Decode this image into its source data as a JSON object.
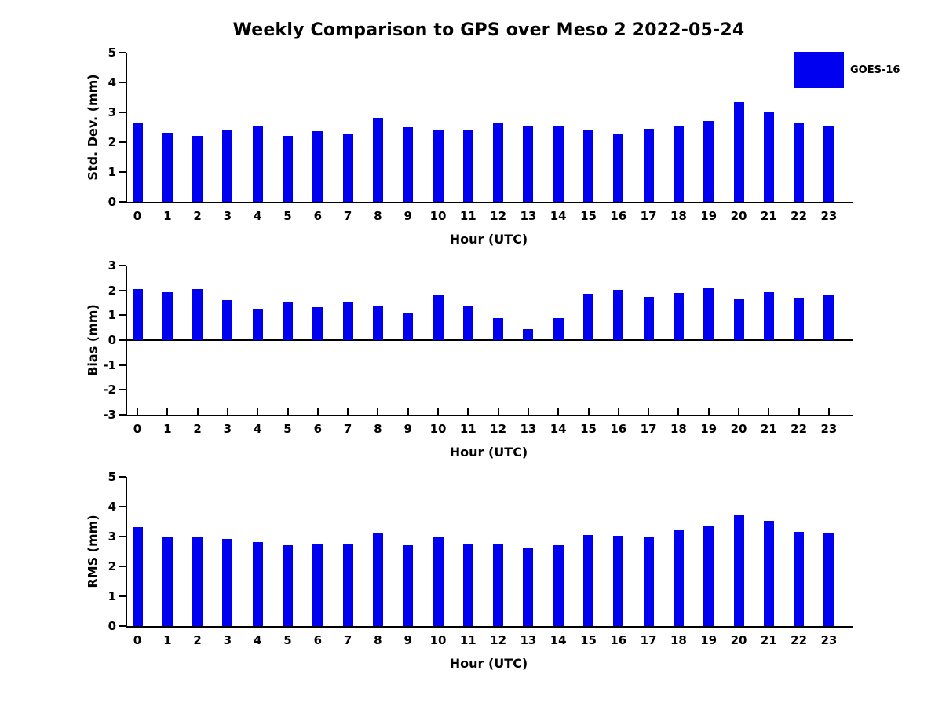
{
  "title": "Weekly Comparison to GPS over Meso 2 2022-05-24",
  "xlabel": "Hour (UTC)",
  "hours": [
    "0",
    "1",
    "2",
    "3",
    "4",
    "5",
    "6",
    "7",
    "8",
    "9",
    "10",
    "11",
    "12",
    "13",
    "14",
    "15",
    "16",
    "17",
    "18",
    "19",
    "20",
    "21",
    "22",
    "23"
  ],
  "legend": {
    "label": "GOES-16",
    "color": "#0000f0",
    "position": "upper right"
  },
  "colors": {
    "bar": "#0000f0",
    "axis": "#000000",
    "background": "#ffffff"
  },
  "chart_data": [
    {
      "type": "bar",
      "name": "std-dev",
      "title": "",
      "xlabel": "Hour (UTC)",
      "ylabel": "Std. Dev. (mm)",
      "ylim": [
        0,
        5
      ],
      "yticks": [
        0,
        1,
        2,
        3,
        4,
        5
      ],
      "grid": false,
      "categories": [
        0,
        1,
        2,
        3,
        4,
        5,
        6,
        7,
        8,
        9,
        10,
        11,
        12,
        13,
        14,
        15,
        16,
        17,
        18,
        19,
        20,
        21,
        22,
        23
      ],
      "series": [
        {
          "name": "GOES-16",
          "values": [
            2.63,
            2.32,
            2.2,
            2.43,
            2.53,
            2.22,
            2.37,
            2.27,
            2.82,
            2.5,
            2.42,
            2.42,
            2.66,
            2.56,
            2.56,
            2.42,
            2.3,
            2.46,
            2.56,
            2.7,
            3.35,
            3.01,
            2.67,
            2.56
          ]
        }
      ]
    },
    {
      "type": "bar",
      "name": "bias",
      "title": "",
      "xlabel": "Hour (UTC)",
      "ylabel": "Bias (mm)",
      "ylim": [
        -3,
        3
      ],
      "yticks": [
        3,
        2,
        1,
        0,
        -1,
        -2,
        -3
      ],
      "grid": false,
      "categories": [
        0,
        1,
        2,
        3,
        4,
        5,
        6,
        7,
        8,
        9,
        10,
        11,
        12,
        13,
        14,
        15,
        16,
        17,
        18,
        19,
        20,
        21,
        22,
        23
      ],
      "series": [
        {
          "name": "GOES-16",
          "values": [
            2.04,
            1.93,
            2.04,
            1.6,
            1.27,
            1.52,
            1.34,
            1.52,
            1.36,
            1.09,
            1.8,
            1.4,
            0.88,
            0.43,
            0.87,
            1.87,
            2.02,
            1.74,
            1.91,
            2.08,
            1.64,
            1.92,
            1.71,
            1.79
          ]
        }
      ]
    },
    {
      "type": "bar",
      "name": "rms",
      "title": "",
      "xlabel": "Hour (UTC)",
      "ylabel": "RMS (mm)",
      "ylim": [
        0,
        5
      ],
      "yticks": [
        0,
        1,
        2,
        3,
        4,
        5
      ],
      "grid": false,
      "categories": [
        0,
        1,
        2,
        3,
        4,
        5,
        6,
        7,
        8,
        9,
        10,
        11,
        12,
        13,
        14,
        15,
        16,
        17,
        18,
        19,
        20,
        21,
        22,
        23
      ],
      "series": [
        {
          "name": "GOES-16",
          "values": [
            3.32,
            3.01,
            2.98,
            2.92,
            2.82,
            2.7,
            2.73,
            2.73,
            3.12,
            2.72,
            3.01,
            2.77,
            2.77,
            2.6,
            2.71,
            3.04,
            3.03,
            2.98,
            3.2,
            3.38,
            3.72,
            3.53,
            3.15,
            3.11
          ]
        }
      ]
    }
  ]
}
